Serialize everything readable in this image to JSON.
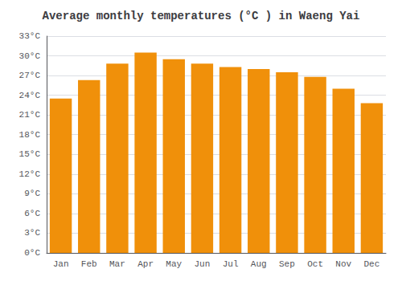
{
  "chart_data": {
    "type": "bar",
    "title": "Average monthly temperatures (°C ) in Waeng Yai",
    "categories": [
      "Jan",
      "Feb",
      "Mar",
      "Apr",
      "May",
      "Jun",
      "Jul",
      "Aug",
      "Sep",
      "Oct",
      "Nov",
      "Dec"
    ],
    "values": [
      23.5,
      26.3,
      28.8,
      30.5,
      29.5,
      28.8,
      28.3,
      28.0,
      27.5,
      26.8,
      25.0,
      22.8
    ],
    "color": "#F0900A",
    "ylim": [
      0,
      33
    ],
    "yticks": [
      {
        "value": 0,
        "label": "0°C"
      },
      {
        "value": 3,
        "label": "3°C"
      },
      {
        "value": 6,
        "label": "6°C"
      },
      {
        "value": 9,
        "label": "9°C"
      },
      {
        "value": 12,
        "label": "12°C"
      },
      {
        "value": 15,
        "label": "15°C"
      },
      {
        "value": 18,
        "label": "18°C"
      },
      {
        "value": 21,
        "label": "21°C"
      },
      {
        "value": 24,
        "label": "24°C"
      },
      {
        "value": 27,
        "label": "27°C"
      },
      {
        "value": 30,
        "label": "30°C"
      },
      {
        "value": 33,
        "label": "33°C"
      }
    ],
    "grid": true
  }
}
